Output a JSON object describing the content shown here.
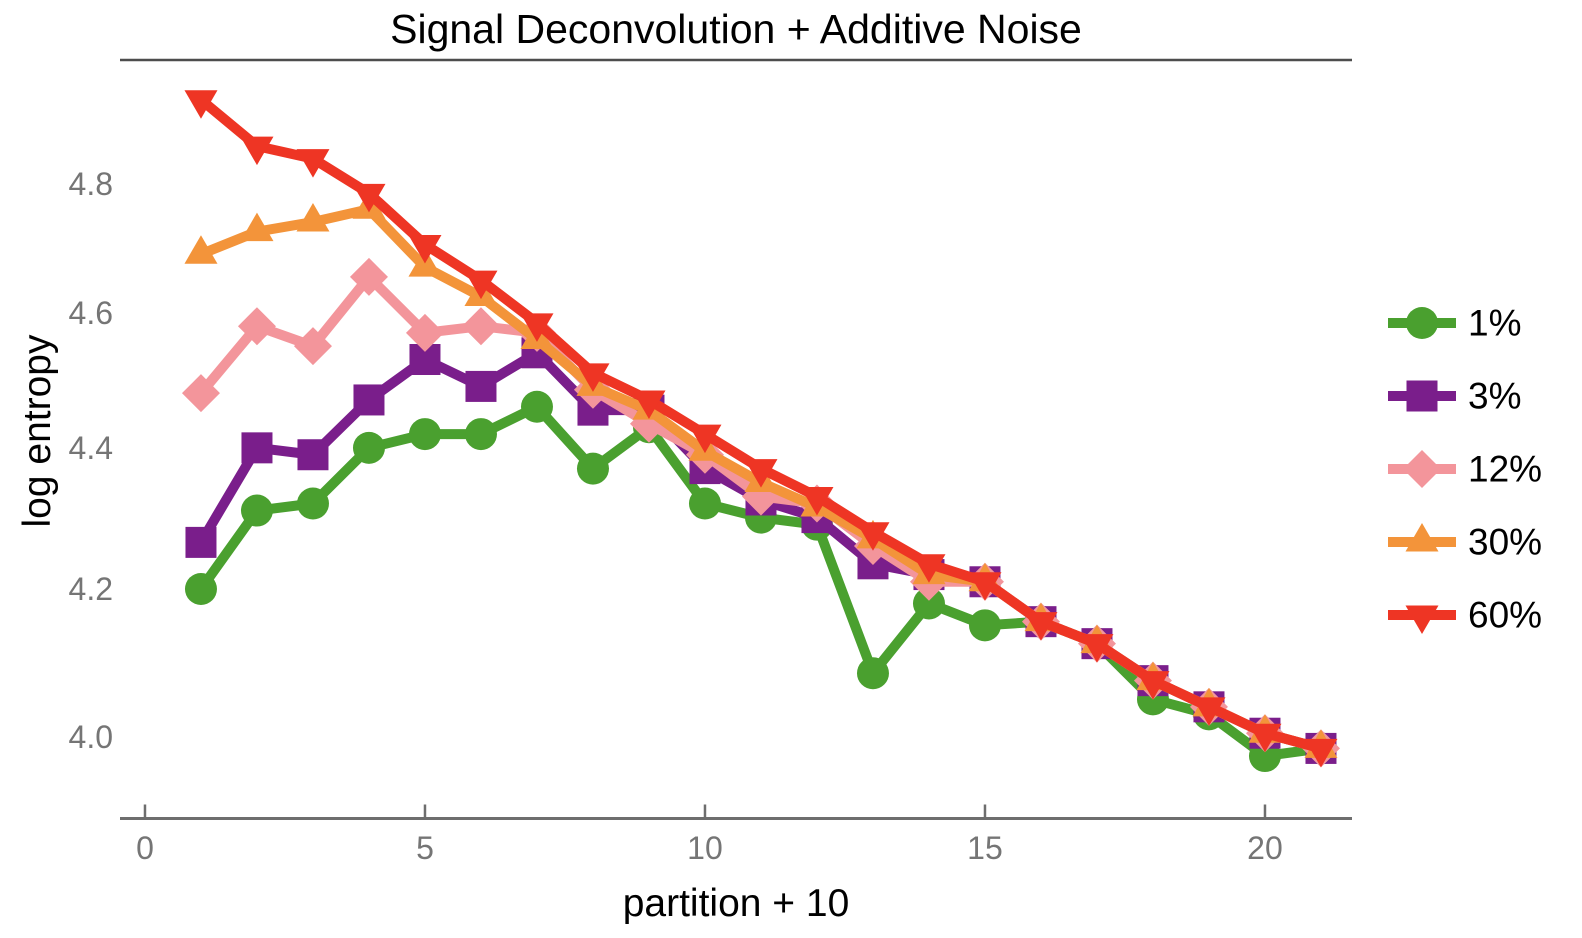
{
  "chart_data": {
    "type": "line",
    "title": "Signal Deconvolution + Additive Noise",
    "xlabel": "partition + 10",
    "ylabel": "log entropy",
    "y_scale": "log",
    "grid": false,
    "legend_position": "right",
    "xlim": [
      -0.446,
      21.554
    ],
    "ylim": [
      3.894,
      5.0
    ],
    "x_ticks": [
      0,
      5,
      10,
      15,
      20
    ],
    "y_ticks": [
      4.0,
      4.2,
      4.4,
      4.6,
      4.8
    ],
    "x": [
      1,
      2,
      3,
      4,
      5,
      6,
      7,
      8,
      9,
      10,
      11,
      12,
      13,
      14,
      15,
      16,
      17,
      18,
      19,
      20,
      21
    ],
    "series": [
      {
        "name": "1%",
        "color": "#4aa02f",
        "marker": "circle",
        "values": [
          4.2,
          4.31,
          4.32,
          4.4,
          4.42,
          4.42,
          4.46,
          4.37,
          4.43,
          4.32,
          4.3,
          4.29,
          4.085,
          4.18,
          4.15,
          4.155,
          4.125,
          4.05,
          4.03,
          3.975,
          3.985
        ]
      },
      {
        "name": "3%",
        "color": "#7a1e8b",
        "marker": "square",
        "values": [
          4.265,
          4.4,
          4.39,
          4.47,
          4.53,
          4.49,
          4.54,
          4.455,
          4.455,
          4.37,
          4.325,
          4.3,
          4.235,
          4.22,
          4.21,
          4.155,
          4.125,
          4.075,
          4.04,
          4.005,
          3.985
        ]
      },
      {
        "name": "12%",
        "color": "#f3959b",
        "marker": "diamond",
        "values": [
          4.48,
          4.58,
          4.55,
          4.655,
          4.57,
          4.58,
          4.57,
          4.485,
          4.435,
          4.39,
          4.33,
          4.32,
          4.26,
          4.21,
          4.21,
          4.155,
          4.125,
          4.075,
          4.04,
          4.005,
          3.985
        ]
      },
      {
        "name": "30%",
        "color": "#f3943a",
        "marker": "triangle-up",
        "values": [
          4.69,
          4.725,
          4.74,
          4.76,
          4.67,
          4.625,
          4.56,
          4.49,
          4.455,
          4.395,
          4.35,
          4.315,
          4.27,
          4.22,
          4.21,
          4.155,
          4.125,
          4.075,
          4.04,
          4.005,
          3.985
        ]
      },
      {
        "name": "60%",
        "color": "#ee3524",
        "marker": "triangle-down",
        "values": [
          4.935,
          4.86,
          4.84,
          4.785,
          4.705,
          4.65,
          4.585,
          4.51,
          4.47,
          4.42,
          4.37,
          4.33,
          4.28,
          4.235,
          4.21,
          4.155,
          4.125,
          4.075,
          4.04,
          4.005,
          3.985
        ]
      }
    ],
    "colors": {
      "axis_line": "#6e6e6e",
      "top_spine": "#4d4d4d",
      "tick_label": "#757575",
      "text": "#000000",
      "background": "#ffffff"
    }
  }
}
